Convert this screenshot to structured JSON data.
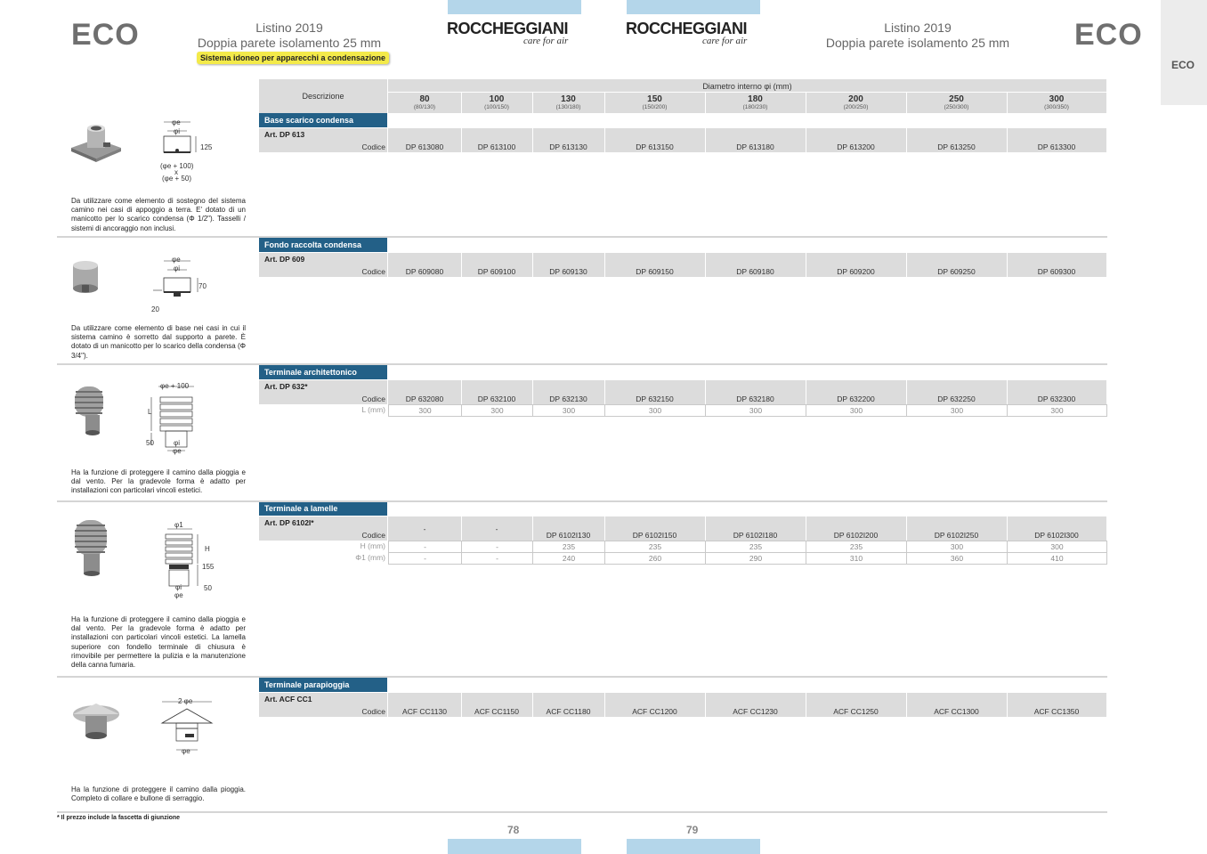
{
  "header": {
    "eco_left": "ECO",
    "eco_right": "ECO",
    "side_tab": "ECO",
    "listino_left": {
      "line1": "Listino 2019",
      "line2": "Doppia parete isolamento 25 mm"
    },
    "listino_right": {
      "line1": "Listino 2019",
      "line2": "Doppia parete isolamento 25 mm"
    },
    "badge": "Sistema idoneo per apparecchi a condensazione",
    "brand": "ROCCHEGGIANI",
    "tagline": "care for air"
  },
  "table_header": {
    "descrizione": "Descrizione",
    "diametro": "Diametro interno φi (mm)",
    "columns": [
      {
        "d": "80",
        "sub": "(80/130)"
      },
      {
        "d": "100",
        "sub": "(100/150)"
      },
      {
        "d": "130",
        "sub": "(130/180)"
      },
      {
        "d": "150",
        "sub": "(150/200)"
      },
      {
        "d": "180",
        "sub": "(180/230)"
      },
      {
        "d": "200",
        "sub": "(200/250)"
      },
      {
        "d": "250",
        "sub": "(250/300)"
      },
      {
        "d": "300",
        "sub": "(300/350)"
      }
    ]
  },
  "sections": [
    {
      "title": "Base scarico condensa",
      "art": "Art. DP 613",
      "codice_label": "Codice",
      "codes": [
        "DP 613080",
        "DP 613100",
        "DP 613130",
        "DP 613150",
        "DP 613180",
        "DP 613200",
        "DP 613250",
        "DP 613300"
      ],
      "rows": [],
      "dims": [
        "φe",
        "φi",
        "125",
        "(φe + 100)",
        "x",
        "(φe + 50)"
      ],
      "description": "Da utilizzare come elemento di sostegno del sistema camino nei casi di appoggio a terra. E' dotato di un manicotto per lo scarico condensa (Φ 1/2\"). Tasselli / sistemi di ancoraggio non inclusi."
    },
    {
      "title": "Fondo raccolta condensa",
      "art": "Art. DP 609",
      "codice_label": "Codice",
      "codes": [
        "DP 609080",
        "DP 609100",
        "DP 609130",
        "DP 609150",
        "DP 609180",
        "DP 609200",
        "DP 609250",
        "DP 609300"
      ],
      "rows": [],
      "dims": [
        "φe",
        "φi",
        "70",
        "20"
      ],
      "description": "Da utilizzare come elemento di base nei casi in cui il sistema camino è sorretto dal supporto a parete. È dotato di un manicotto per lo scarico della condensa (Φ 3/4\")."
    },
    {
      "title": "Terminale architettonico",
      "art": "Art. DP 632*",
      "codice_label": "Codice",
      "codes": [
        "DP 632080",
        "DP 632100",
        "DP 632130",
        "DP 632150",
        "DP 632180",
        "DP 632200",
        "DP 632250",
        "DP 632300"
      ],
      "rows": [
        {
          "label": "L (mm)",
          "values": [
            "300",
            "300",
            "300",
            "300",
            "300",
            "300",
            "300",
            "300"
          ]
        }
      ],
      "dims": [
        "φe + 100",
        "L",
        "50",
        "φi",
        "φe"
      ],
      "description": "Ha la funzione di proteggere il camino dalla pioggia e dal vento. Per la gradevole forma è adatto per installazioni con particolari vincoli estetici."
    },
    {
      "title": "Terminale a lamelle",
      "art": "Art. DP 6102I*",
      "codice_label": "Codice",
      "codes": [
        "-",
        "-",
        "DP 6102I130",
        "DP 6102I150",
        "DP 6102I180",
        "DP 6102I200",
        "DP 6102I250",
        "DP 6102I300"
      ],
      "rows": [
        {
          "label": "H (mm)",
          "values": [
            "-",
            "-",
            "235",
            "235",
            "235",
            "235",
            "300",
            "300"
          ]
        },
        {
          "label": "Φ1 (mm)",
          "values": [
            "-",
            "-",
            "240",
            "260",
            "290",
            "310",
            "360",
            "410"
          ]
        }
      ],
      "dims": [
        "φ1",
        "H",
        "155",
        "φi",
        "50",
        "φe"
      ],
      "description": "Ha la funzione di proteggere il camino dalla pioggia e dal vento. Per la gradevole forma è adatto per installazioni con particolari vincoli estetici. La lamella superiore con fondello terminale di chiusura è rimovibile per permettere la pulizia e la manutenzione della canna fumaria."
    },
    {
      "title": "Terminale parapioggia",
      "art": "Art. ACF CC1",
      "codice_label": "Codice",
      "codes": [
        "ACF CC1130",
        "ACF CC1150",
        "ACF CC1180",
        "ACF CC1200",
        "ACF CC1230",
        "ACF CC1250",
        "ACF CC1300",
        "ACF CC1350"
      ],
      "rows": [],
      "dims": [
        "2 φe",
        "φe"
      ],
      "description": "Ha la funzione di proteggere il camino dalla pioggia. Completo di collare e bullone di serraggio."
    }
  ],
  "footnote": "* Il prezzo include la fascetta di giunzione",
  "page_numbers": {
    "left": "78",
    "right": "79"
  },
  "colors": {
    "section_title_bg": "#236087",
    "header_bar": "#b4d6ea",
    "badge": "#f3ea4a",
    "grey_row": "#dcdcdc"
  }
}
